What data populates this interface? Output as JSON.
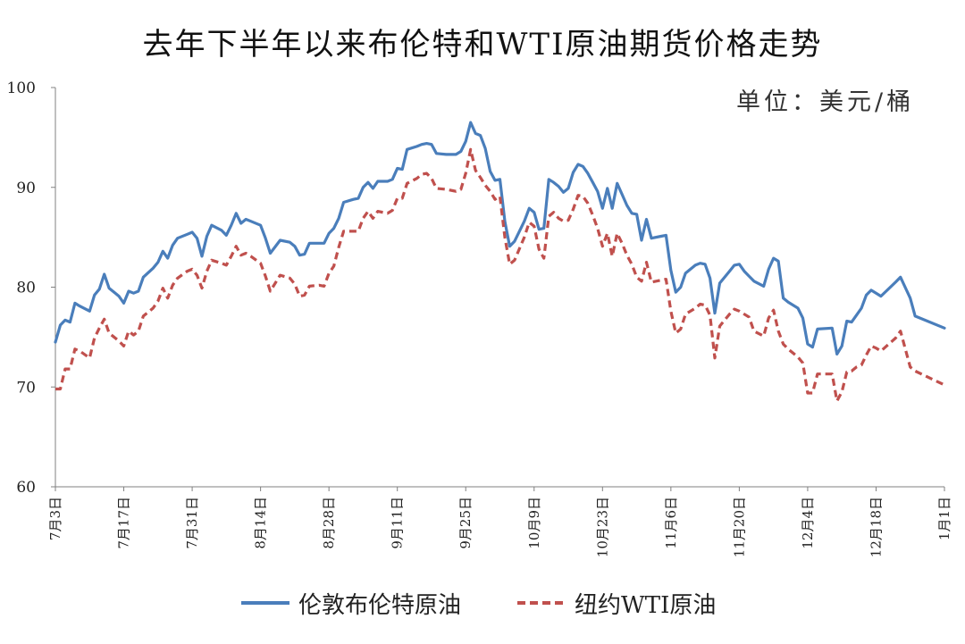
{
  "chart_data": {
    "type": "line",
    "title": "去年下半年以来布伦特和WTI原油期货价格走势",
    "unit_label": "单位：美元/桶",
    "ylim": [
      60,
      100
    ],
    "y_ticks": [
      "60",
      "70",
      "80",
      "90",
      "100"
    ],
    "x_ticks": [
      "7月3日",
      "7月17日",
      "7月31日",
      "8月14日",
      "8月28日",
      "9月11日",
      "9月25日",
      "10月9日",
      "10月23日",
      "11月6日",
      "11月20日",
      "12月4日",
      "12月18日",
      "1月1日"
    ],
    "x_range": [
      0,
      182
    ],
    "legend_position": "bottom",
    "series": [
      {
        "name": "伦敦布伦特原油",
        "color": "#4a7ebb",
        "style": "solid",
        "points": [
          [
            0,
            74.5
          ],
          [
            1,
            76.2
          ],
          [
            2,
            76.7
          ],
          [
            3,
            76.5
          ],
          [
            4,
            78.4
          ],
          [
            5,
            78.1
          ],
          [
            7,
            77.6
          ],
          [
            8,
            79.2
          ],
          [
            9,
            79.8
          ],
          [
            10,
            81.3
          ],
          [
            11,
            79.9
          ],
          [
            13,
            79.1
          ],
          [
            14,
            78.4
          ],
          [
            15,
            79.6
          ],
          [
            16,
            79.4
          ],
          [
            17,
            79.6
          ],
          [
            18,
            81.0
          ],
          [
            20,
            81.9
          ],
          [
            21,
            82.5
          ],
          [
            22,
            83.6
          ],
          [
            23,
            82.9
          ],
          [
            24,
            84.2
          ],
          [
            25,
            84.9
          ],
          [
            27,
            85.3
          ],
          [
            28,
            85.5
          ],
          [
            29,
            84.9
          ],
          [
            30,
            83.1
          ],
          [
            31,
            85.1
          ],
          [
            32,
            86.2
          ],
          [
            34,
            85.7
          ],
          [
            35,
            85.2
          ],
          [
            36,
            86.2
          ],
          [
            37,
            87.4
          ],
          [
            38,
            86.4
          ],
          [
            39,
            86.8
          ],
          [
            40,
            86.6
          ],
          [
            42,
            86.2
          ],
          [
            43,
            84.9
          ],
          [
            44,
            83.4
          ],
          [
            46,
            84.7
          ],
          [
            48,
            84.5
          ],
          [
            49,
            84.1
          ],
          [
            50,
            83.2
          ],
          [
            51,
            83.3
          ],
          [
            52,
            84.4
          ],
          [
            54,
            84.4
          ],
          [
            55,
            84.4
          ],
          [
            56,
            85.4
          ],
          [
            57,
            85.9
          ],
          [
            58,
            86.9
          ],
          [
            59,
            88.5
          ],
          [
            61,
            88.8
          ],
          [
            62,
            88.9
          ],
          [
            63,
            90.0
          ],
          [
            64,
            90.5
          ],
          [
            65,
            89.9
          ],
          [
            66,
            90.6
          ],
          [
            68,
            90.6
          ],
          [
            69,
            90.8
          ],
          [
            70,
            91.9
          ],
          [
            71,
            91.8
          ],
          [
            72,
            93.8
          ],
          [
            74,
            94.1
          ],
          [
            75,
            94.3
          ],
          [
            76,
            94.4
          ],
          [
            77,
            94.3
          ],
          [
            78,
            93.4
          ],
          [
            80,
            93.3
          ],
          [
            82,
            93.3
          ],
          [
            83,
            93.6
          ],
          [
            84,
            94.6
          ],
          [
            85,
            96.5
          ],
          [
            86,
            95.4
          ],
          [
            87,
            95.2
          ],
          [
            88,
            93.9
          ],
          [
            89,
            91.6
          ],
          [
            90,
            90.7
          ],
          [
            91,
            90.8
          ],
          [
            92,
            86.6
          ],
          [
            93,
            84.1
          ],
          [
            94,
            84.6
          ],
          [
            96,
            86.6
          ],
          [
            97,
            87.9
          ],
          [
            98,
            87.5
          ],
          [
            99,
            85.8
          ],
          [
            100,
            85.9
          ],
          [
            101,
            90.8
          ],
          [
            102,
            90.5
          ],
          [
            103,
            90.1
          ],
          [
            104,
            89.5
          ],
          [
            105,
            89.9
          ],
          [
            106,
            91.5
          ],
          [
            107,
            92.3
          ],
          [
            108,
            92.1
          ],
          [
            109,
            91.4
          ],
          [
            110,
            90.5
          ],
          [
            111,
            89.6
          ],
          [
            112,
            87.9
          ],
          [
            113,
            89.9
          ],
          [
            114,
            87.9
          ],
          [
            115,
            90.4
          ],
          [
            116,
            89.3
          ],
          [
            117,
            88.2
          ],
          [
            118,
            87.4
          ],
          [
            119,
            87.3
          ],
          [
            120,
            84.7
          ],
          [
            121,
            86.8
          ],
          [
            122,
            84.9
          ],
          [
            124,
            85.1
          ],
          [
            125,
            85.2
          ],
          [
            126,
            81.7
          ],
          [
            127,
            79.5
          ],
          [
            128,
            80.0
          ],
          [
            129,
            81.4
          ],
          [
            131,
            82.2
          ],
          [
            132,
            82.4
          ],
          [
            133,
            82.3
          ],
          [
            134,
            80.9
          ],
          [
            135,
            77.4
          ],
          [
            136,
            80.4
          ],
          [
            138,
            81.6
          ],
          [
            139,
            82.2
          ],
          [
            140,
            82.3
          ],
          [
            141,
            81.6
          ],
          [
            142,
            81.1
          ],
          [
            143,
            80.6
          ],
          [
            145,
            80.1
          ],
          [
            146,
            81.8
          ],
          [
            147,
            82.9
          ],
          [
            148,
            82.6
          ],
          [
            149,
            78.9
          ],
          [
            150,
            78.5
          ],
          [
            152,
            77.9
          ],
          [
            153,
            76.9
          ],
          [
            154,
            74.3
          ],
          [
            155,
            74.0
          ],
          [
            156,
            75.8
          ],
          [
            159,
            75.9
          ],
          [
            160,
            73.3
          ],
          [
            161,
            74.1
          ],
          [
            162,
            76.6
          ],
          [
            163,
            76.5
          ],
          [
            164,
            77.2
          ],
          [
            165,
            77.9
          ],
          [
            166,
            79.2
          ],
          [
            167,
            79.7
          ],
          [
            168,
            79.4
          ],
          [
            169,
            79.1
          ],
          [
            172,
            80.5
          ],
          [
            173,
            81.0
          ],
          [
            175,
            78.9
          ],
          [
            176,
            77.1
          ],
          [
            182,
            75.9
          ]
        ]
      },
      {
        "name": "纽约WTI原油",
        "color": "#c0504d",
        "style": "dashed",
        "points": [
          [
            0,
            69.8
          ],
          [
            1,
            69.8
          ],
          [
            2,
            71.8
          ],
          [
            3,
            71.8
          ],
          [
            4,
            73.8
          ],
          [
            5,
            73.6
          ],
          [
            7,
            72.9
          ],
          [
            8,
            74.9
          ],
          [
            9,
            75.9
          ],
          [
            10,
            76.8
          ],
          [
            11,
            75.4
          ],
          [
            13,
            74.6
          ],
          [
            14,
            74.1
          ],
          [
            15,
            75.6
          ],
          [
            16,
            75.2
          ],
          [
            17,
            75.6
          ],
          [
            18,
            77.1
          ],
          [
            20,
            77.9
          ],
          [
            21,
            78.6
          ],
          [
            22,
            79.9
          ],
          [
            23,
            78.9
          ],
          [
            24,
            80.2
          ],
          [
            25,
            80.9
          ],
          [
            27,
            81.6
          ],
          [
            28,
            81.8
          ],
          [
            29,
            81.2
          ],
          [
            30,
            79.9
          ],
          [
            31,
            81.6
          ],
          [
            32,
            82.7
          ],
          [
            34,
            82.4
          ],
          [
            35,
            82.2
          ],
          [
            36,
            83.1
          ],
          [
            37,
            84.1
          ],
          [
            38,
            83.2
          ],
          [
            39,
            83.4
          ],
          [
            40,
            83.1
          ],
          [
            42,
            82.4
          ],
          [
            43,
            81.1
          ],
          [
            44,
            79.6
          ],
          [
            46,
            81.2
          ],
          [
            48,
            80.9
          ],
          [
            49,
            80.3
          ],
          [
            50,
            79.1
          ],
          [
            51,
            79.2
          ],
          [
            52,
            80.1
          ],
          [
            54,
            80.2
          ],
          [
            55,
            80.1
          ],
          [
            56,
            81.4
          ],
          [
            57,
            82.1
          ],
          [
            58,
            84.0
          ],
          [
            59,
            85.6
          ],
          [
            61,
            85.6
          ],
          [
            62,
            85.6
          ],
          [
            63,
            86.9
          ],
          [
            64,
            87.6
          ],
          [
            65,
            86.9
          ],
          [
            66,
            87.6
          ],
          [
            68,
            87.4
          ],
          [
            69,
            87.7
          ],
          [
            70,
            88.9
          ],
          [
            71,
            88.9
          ],
          [
            72,
            90.4
          ],
          [
            74,
            90.9
          ],
          [
            75,
            91.3
          ],
          [
            76,
            91.4
          ],
          [
            77,
            90.9
          ],
          [
            78,
            89.9
          ],
          [
            80,
            89.8
          ],
          [
            82,
            89.6
          ],
          [
            83,
            89.8
          ],
          [
            84,
            91.4
          ],
          [
            85,
            93.8
          ],
          [
            86,
            91.7
          ],
          [
            87,
            91.0
          ],
          [
            88,
            90.2
          ],
          [
            89,
            89.6
          ],
          [
            90,
            88.8
          ],
          [
            91,
            89.1
          ],
          [
            92,
            85.0
          ],
          [
            93,
            82.3
          ],
          [
            94,
            82.7
          ],
          [
            96,
            85.0
          ],
          [
            97,
            86.5
          ],
          [
            98,
            86.1
          ],
          [
            99,
            83.8
          ],
          [
            100,
            82.9
          ],
          [
            101,
            87.1
          ],
          [
            102,
            87.5
          ],
          [
            103,
            86.9
          ],
          [
            104,
            86.6
          ],
          [
            105,
            86.7
          ],
          [
            106,
            87.8
          ],
          [
            107,
            89.2
          ],
          [
            108,
            89.1
          ],
          [
            109,
            88.4
          ],
          [
            110,
            87.2
          ],
          [
            111,
            85.9
          ],
          [
            112,
            84.1
          ],
          [
            113,
            85.4
          ],
          [
            114,
            83.1
          ],
          [
            115,
            85.4
          ],
          [
            116,
            84.4
          ],
          [
            117,
            83.2
          ],
          [
            118,
            82.3
          ],
          [
            119,
            81.0
          ],
          [
            120,
            80.6
          ],
          [
            121,
            82.5
          ],
          [
            122,
            80.5
          ],
          [
            124,
            80.7
          ],
          [
            125,
            80.8
          ],
          [
            126,
            77.6
          ],
          [
            127,
            75.4
          ],
          [
            128,
            75.8
          ],
          [
            129,
            77.3
          ],
          [
            131,
            77.9
          ],
          [
            132,
            78.3
          ],
          [
            133,
            78.2
          ],
          [
            134,
            77.2
          ],
          [
            135,
            72.9
          ],
          [
            136,
            76.1
          ],
          [
            138,
            77.3
          ],
          [
            139,
            77.8
          ],
          [
            140,
            77.6
          ],
          [
            141,
            77.3
          ],
          [
            142,
            77.0
          ],
          [
            143,
            75.6
          ],
          [
            145,
            75.1
          ],
          [
            146,
            76.9
          ],
          [
            147,
            77.7
          ],
          [
            148,
            75.6
          ],
          [
            149,
            74.3
          ],
          [
            150,
            73.8
          ],
          [
            152,
            73.0
          ],
          [
            153,
            72.4
          ],
          [
            154,
            69.4
          ],
          [
            155,
            69.4
          ],
          [
            156,
            71.3
          ],
          [
            159,
            71.3
          ],
          [
            160,
            68.6
          ],
          [
            161,
            69.5
          ],
          [
            162,
            71.5
          ],
          [
            163,
            71.6
          ],
          [
            164,
            72.0
          ],
          [
            165,
            72.2
          ],
          [
            166,
            73.2
          ],
          [
            167,
            74.1
          ],
          [
            168,
            73.9
          ],
          [
            169,
            73.6
          ],
          [
            172,
            74.9
          ],
          [
            173,
            75.6
          ],
          [
            175,
            72.0
          ],
          [
            176,
            71.6
          ],
          [
            182,
            70.2
          ]
        ]
      }
    ]
  }
}
